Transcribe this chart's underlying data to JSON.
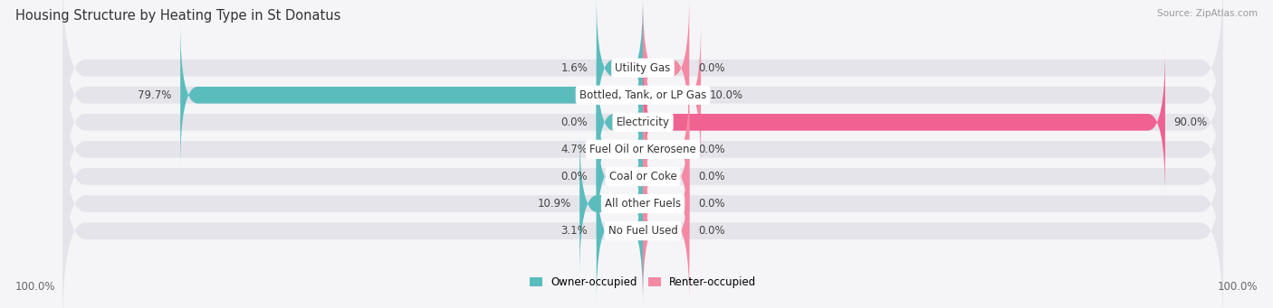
{
  "title": "Housing Structure by Heating Type in St Donatus",
  "source": "Source: ZipAtlas.com",
  "categories": [
    "Utility Gas",
    "Bottled, Tank, or LP Gas",
    "Electricity",
    "Fuel Oil or Kerosene",
    "Coal or Coke",
    "All other Fuels",
    "No Fuel Used"
  ],
  "owner_values": [
    1.6,
    79.7,
    0.0,
    4.7,
    0.0,
    10.9,
    3.1
  ],
  "renter_values": [
    0.0,
    10.0,
    90.0,
    0.0,
    0.0,
    0.0,
    0.0
  ],
  "owner_color": "#5bbcbe",
  "renter_color": "#f589a3",
  "renter_color_dark": "#f06292",
  "owner_label": "Owner-occupied",
  "renter_label": "Renter-occupied",
  "bar_bg_color": "#e4e4ea",
  "fig_bg_color": "#f5f5f8",
  "label_fontsize": 8.5,
  "title_fontsize": 10.5,
  "max_val": 100,
  "min_stub": 8,
  "left_axis_label": "100.0%",
  "right_axis_label": "100.0%"
}
